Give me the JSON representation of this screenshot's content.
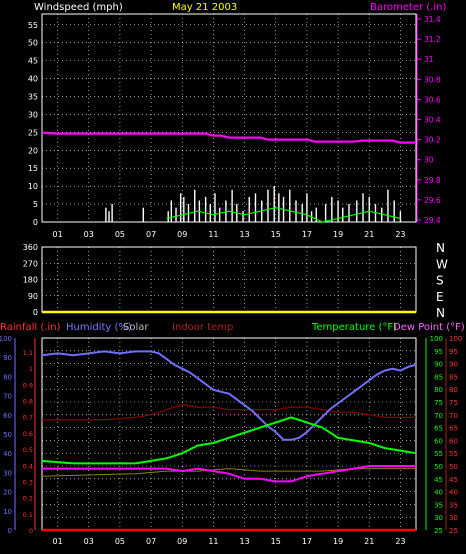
{
  "header": {
    "windspeed_label": "Windspeed (mph)",
    "date": "May 21 2003",
    "barometer_label": "Barometer (.in)"
  },
  "panel3": {
    "rainfall_label": "Rainfall (.in)",
    "humidity_label": "Humidity (%)",
    "solar_label": "Solar",
    "indoor_label": "Indoor temp",
    "temperature_label": "Temperature (°F)",
    "dewpoint_label": "Dew Point (°F)"
  },
  "colors": {
    "wind": "#ffffff",
    "gust_avg": "#00ff00",
    "barometer": "#ff00ff",
    "direction": "#ffff00",
    "rainfall": "#ff0000",
    "humidity": "#6f6fff",
    "indoor": "#880000",
    "temperature": "#00ff00",
    "dewpoint": "#ff00ff",
    "solar": "#ffff00"
  },
  "chart_data": [
    {
      "type": "line",
      "name": "wind-barometer",
      "x_ticks": [
        "01",
        "03",
        "05",
        "07",
        "09",
        "11",
        "13",
        "15",
        "17",
        "19",
        "21",
        "23"
      ],
      "y_left_ticks": [
        0,
        5,
        10,
        15,
        20,
        25,
        30,
        35,
        40,
        45,
        50,
        55
      ],
      "ylim_left": [
        0,
        58
      ],
      "y_right_ticks": [
        "29.4",
        "29.6",
        "29.8",
        "30",
        "30.2",
        "30.4",
        "30.6",
        "30.8",
        "31",
        "31.2",
        "31.4"
      ],
      "ylim_right": [
        29.38,
        31.45
      ],
      "barometer": {
        "x": [
          0,
          1,
          2,
          8,
          10.5,
          11,
          11.5,
          12,
          14,
          14.5,
          16,
          17,
          17.5,
          18,
          20,
          20.5,
          21,
          22.5,
          23,
          24
        ],
        "y": [
          30.27,
          30.26,
          30.26,
          30.26,
          30.26,
          30.24,
          30.24,
          30.22,
          30.22,
          30.2,
          30.2,
          30.2,
          30.18,
          30.18,
          30.18,
          30.19,
          30.19,
          30.19,
          30.17,
          30.17
        ]
      },
      "wind_peaks": {
        "x": [
          4.1,
          4.3,
          4.5,
          6.5,
          8.1,
          8.3,
          8.6,
          8.9,
          9.1,
          9.4,
          9.8,
          10.1,
          10.5,
          10.8,
          11.1,
          11.4,
          11.8,
          12.2,
          12.5,
          12.9,
          13.3,
          13.7,
          14.1,
          14.5,
          14.9,
          15.2,
          15.5,
          15.9,
          16.3,
          16.7,
          17.0,
          17.3,
          17.6,
          18.2,
          18.6,
          19.0,
          19.3,
          19.7,
          20.2,
          20.6,
          21.0,
          21.4,
          21.8,
          22.2,
          22.6,
          23.0
        ],
        "y": [
          4,
          3,
          5,
          4,
          3,
          6,
          4,
          8,
          7,
          5,
          9,
          6,
          7,
          5,
          8,
          4,
          6,
          9,
          5,
          3,
          7,
          8,
          6,
          9,
          10,
          8,
          7,
          9,
          6,
          5,
          8,
          3,
          4,
          5,
          7,
          6,
          4,
          5,
          6,
          8,
          7,
          5,
          4,
          9,
          6,
          3
        ]
      },
      "wind_avg": {
        "x": [
          8,
          9,
          10,
          11,
          12,
          13,
          14,
          15,
          16,
          17,
          18,
          19,
          20,
          21,
          22,
          23
        ],
        "y": [
          1,
          2,
          3,
          2,
          3,
          2,
          3,
          4,
          3,
          2,
          0,
          1,
          2,
          3,
          2,
          1
        ]
      }
    },
    {
      "type": "line",
      "name": "wind-direction",
      "y_ticks": [
        "0",
        "90",
        "180",
        "270",
        "360"
      ],
      "ylim": [
        0,
        360
      ],
      "y_right_ticks": [
        "N",
        "E",
        "S",
        "W",
        "N"
      ],
      "direction": {
        "x": [
          0,
          24
        ],
        "y": [
          0,
          0
        ]
      }
    },
    {
      "type": "line",
      "name": "temp-humidity",
      "ylim_pct": [
        0,
        100
      ],
      "y_pct_ticks": [
        "0",
        "10",
        "20",
        "30",
        "40",
        "50",
        "60",
        "70",
        "80",
        "90",
        "100"
      ],
      "y_rain_ticks": [
        "0",
        "0.1",
        "0.2",
        "0.3",
        "0.4",
        "0.5",
        "0.6",
        "0.7",
        "0.8",
        "0.9",
        "1",
        "1.1"
      ],
      "ylim_temp": [
        25,
        100
      ],
      "y_temp_ticks": [
        "25",
        "30",
        "35",
        "40",
        "45",
        "50",
        "55",
        "60",
        "65",
        "70",
        "75",
        "80",
        "85",
        "90",
        "95",
        "100"
      ],
      "humidity": {
        "x": [
          0,
          1,
          2,
          3,
          4,
          5,
          6,
          7,
          7.5,
          8,
          8.5,
          9,
          9.5,
          10,
          10.5,
          11,
          11.5,
          12,
          12.5,
          13,
          13.5,
          14,
          14.5,
          15,
          15.5,
          16,
          16.5,
          17,
          17.5,
          18,
          18.5,
          19,
          19.5,
          20,
          20.5,
          21,
          21.5,
          22,
          22.5,
          23,
          23.5,
          24
        ],
        "y": [
          91,
          92,
          91,
          92,
          93,
          92,
          93,
          93,
          92,
          89,
          86,
          84,
          82,
          79,
          76,
          73,
          72,
          71,
          68,
          65,
          62,
          58,
          54,
          51,
          47,
          47,
          48,
          51,
          55,
          59,
          63,
          66,
          69,
          72,
          75,
          78,
          81,
          83,
          84,
          83,
          85,
          86
        ]
      },
      "temperature": {
        "x": [
          0,
          2,
          4,
          6,
          7,
          8,
          9,
          10,
          11,
          12,
          13,
          14,
          15,
          16,
          17,
          18,
          19,
          20,
          21,
          22,
          23,
          24
        ],
        "y": [
          52,
          51,
          51,
          51,
          52,
          53,
          55,
          58,
          59,
          61,
          63,
          65,
          67,
          69,
          67,
          65,
          61,
          60,
          59,
          57,
          56,
          55
        ]
      },
      "dewpoint": {
        "x": [
          0,
          2,
          4,
          6,
          8,
          9,
          10,
          11,
          12,
          13,
          14,
          15,
          16,
          17,
          18,
          19,
          20,
          21,
          22,
          23,
          24
        ],
        "y": [
          49,
          49,
          49,
          49,
          49,
          48,
          49,
          48,
          47,
          45,
          45,
          44,
          44,
          46,
          47,
          48,
          49,
          50,
          50,
          50,
          50
        ]
      },
      "indoor": {
        "x": [
          0,
          2,
          4,
          6,
          7,
          8,
          9,
          10,
          11,
          12,
          13,
          14,
          15,
          16,
          17,
          18,
          19,
          20,
          21,
          22,
          23,
          24
        ],
        "y": [
          68,
          68,
          68,
          69,
          70,
          72,
          74,
          73,
          73,
          72,
          72,
          72,
          72,
          73,
          73,
          72,
          71,
          71,
          70,
          69,
          69,
          69
        ]
      },
      "solar": {
        "x": [
          0,
          6,
          8,
          10,
          12,
          14,
          16,
          18,
          20,
          22,
          24
        ],
        "y": [
          46,
          47,
          48,
          48,
          49,
          48,
          48,
          48,
          49,
          49,
          49
        ]
      },
      "rainfall": {
        "x": [
          0,
          24
        ],
        "y": [
          0,
          0
        ]
      }
    }
  ]
}
